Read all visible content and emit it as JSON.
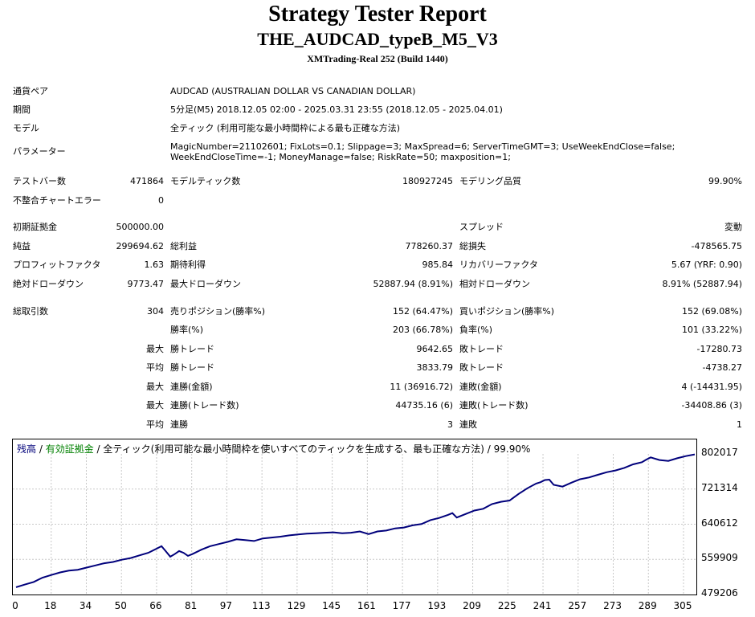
{
  "report": {
    "title": "Strategy Tester Report",
    "subtitle": "THE_AUDCAD_typeB_M5_V3",
    "server": "XMTrading-Real 252 (Build 1440)"
  },
  "info": {
    "pair_label": "通貨ペア",
    "pair_value": "AUDCAD (AUSTRALIAN DOLLAR VS CANADIAN DOLLAR)",
    "period_label": "期間",
    "period_value": "5分足(M5) 2018.12.05 02:00 - 2025.03.31 23:55 (2018.12.05 - 2025.04.01)",
    "model_label": "モデル",
    "model_value": "全ティック (利用可能な最小時間枠による最も正確な方法)",
    "params_label": "パラメーター",
    "params_line1": "MagicNumber=21102601; FixLots=0.1; Slippage=3; MaxSpread=6; ServerTimeGMT=3; UseWeekEndClose=false;",
    "params_line2": "WeekEndCloseTime=-1; MoneyManage=false; RiskRate=50; maxposition=1;"
  },
  "stats": {
    "test_bars_label": "テストバー数",
    "test_bars": "471864",
    "model_ticks_label": "モデルティック数",
    "model_ticks": "180927245",
    "model_quality_label": "モデリング品質",
    "model_quality": "99.90%",
    "mismatch_label": "不整合チャートエラー",
    "mismatch": "0",
    "deposit_label": "初期証拠金",
    "deposit": "500000.00",
    "spread_label": "スプレッド",
    "spread": "変動",
    "net_label": "純益",
    "net": "299694.62",
    "gross_profit_label": "総利益",
    "gross_profit": "778260.37",
    "gross_loss_label": "総損失",
    "gross_loss": "-478565.75",
    "pf_label": "プロフィットファクタ",
    "pf": "1.63",
    "expected_label": "期待利得",
    "expected": "985.84",
    "recovery_label": "リカバリーファクタ",
    "recovery": "5.67 (YRF: 0.90)",
    "abs_dd_label": "絶対ドローダウン",
    "abs_dd": "9773.47",
    "max_dd_label": "最大ドローダウン",
    "max_dd": "52887.94 (8.91%)",
    "rel_dd_label": "相対ドローダウン",
    "rel_dd": "8.91% (52887.94)",
    "trades_label": "総取引数",
    "trades": "304",
    "short_label": "売りポジション(勝率%)",
    "short": "152 (64.47%)",
    "long_label": "買いポジション(勝率%)",
    "long": "152 (69.08%)",
    "win_rate_label": "勝率(%)",
    "win_rate": "203 (66.78%)",
    "loss_rate_label": "負率(%)",
    "loss_rate": "101 (33.22%)",
    "max_prefix": "最大",
    "avg_prefix": "平均",
    "largest_win_label": "勝トレード",
    "largest_win": "9642.65",
    "largest_loss_label": "敗トレード",
    "largest_loss": "-17280.73",
    "avg_win_label": "勝トレード",
    "avg_win": "3833.79",
    "avg_loss_label": "敗トレード",
    "avg_loss": "-4738.27",
    "max_consec_win_label": "連勝(金額)",
    "max_consec_win": "11 (36916.72)",
    "max_consec_loss_label": "連敗(金額)",
    "max_consec_loss": "4 (-14431.95)",
    "max_consec_profit_label": "連勝(トレード数)",
    "max_consec_profit": "44735.16 (6)",
    "max_consec_lossamt_label": "連敗(トレード数)",
    "max_consec_lossamt": "-34408.86 (3)",
    "avg_consec_win_label": "連勝",
    "avg_consec_win": "3",
    "avg_consec_loss_label": "連敗",
    "avg_consec_loss": "1"
  },
  "chart_legend": {
    "balance": "残高",
    "sep1": " / ",
    "equity": "有効証拠金",
    "rest": " / 全ティック(利用可能な最小時間枠を使いすべてのティックを生成する、最も正確な方法) / 99.90%"
  },
  "colors": {
    "balance": "#00007b",
    "equity": "#008000",
    "grid": "#c8c8c8"
  },
  "chart_data": {
    "type": "line",
    "x_ticks": [
      "0",
      "18",
      "34",
      "50",
      "66",
      "81",
      "97",
      "113",
      "129",
      "145",
      "161",
      "177",
      "193",
      "209",
      "225",
      "241",
      "257",
      "273",
      "289",
      "305"
    ],
    "y_ticks": [
      "802017",
      "721314",
      "640612",
      "559909",
      "479206"
    ],
    "ylim": [
      479206,
      802017
    ],
    "xlim": [
      0,
      308
    ],
    "grid": true,
    "series": [
      {
        "name": "残高",
        "x": [
          0,
          4,
          8,
          12,
          16,
          20,
          24,
          28,
          32,
          36,
          40,
          44,
          48,
          52,
          56,
          60,
          62,
          64,
          66,
          68,
          70,
          72,
          74,
          76,
          78,
          80,
          84,
          88,
          92,
          96,
          100,
          104,
          108,
          112,
          116,
          120,
          124,
          128,
          132,
          136,
          140,
          144,
          148,
          152,
          156,
          160,
          164,
          168,
          172,
          176,
          180,
          184,
          188,
          192,
          196,
          198,
          200,
          204,
          208,
          212,
          216,
          220,
          224,
          228,
          232,
          236,
          238,
          240,
          242,
          244,
          248,
          252,
          256,
          260,
          264,
          268,
          272,
          276,
          280,
          284,
          286,
          288,
          292,
          296,
          300,
          304,
          308
        ],
        "values": [
          496000,
          502000,
          508000,
          518000,
          524000,
          530000,
          534000,
          536000,
          541000,
          546000,
          551000,
          554000,
          559000,
          563000,
          569000,
          575000,
          580000,
          585000,
          590000,
          578000,
          566000,
          572000,
          579000,
          575000,
          568000,
          572000,
          582000,
          590000,
          595000,
          600000,
          606000,
          604000,
          602000,
          608000,
          610000,
          612000,
          615000,
          617000,
          619000,
          620000,
          621000,
          622000,
          620000,
          621000,
          624000,
          618000,
          624000,
          626000,
          631000,
          633000,
          638000,
          641000,
          650000,
          655000,
          662000,
          666000,
          656000,
          664000,
          672000,
          676000,
          687000,
          692000,
          695000,
          710000,
          723000,
          734000,
          737000,
          742000,
          743000,
          731000,
          727000,
          736000,
          744000,
          748000,
          754000,
          760000,
          764000,
          770000,
          778000,
          783000,
          789000,
          794000,
          788000,
          786000,
          792000,
          797000,
          801000
        ]
      }
    ]
  }
}
